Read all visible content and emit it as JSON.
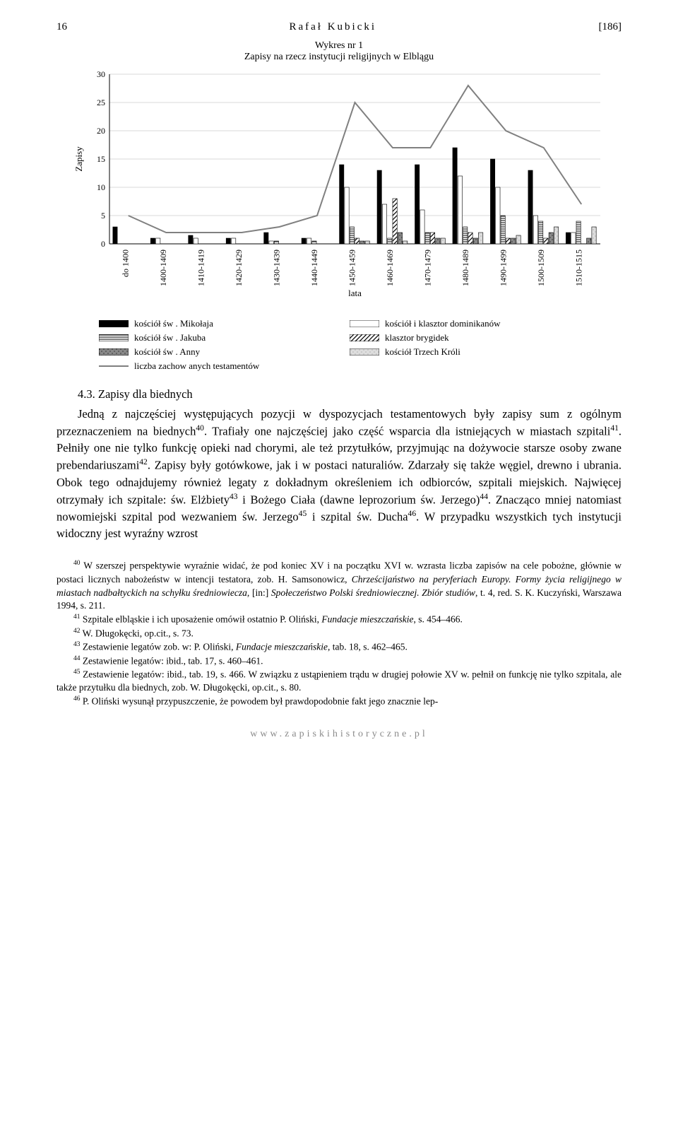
{
  "header": {
    "page_num": "16",
    "author": "Rafał Kubicki",
    "bracket_num": "[186]"
  },
  "chart": {
    "title_line1": "Wykres nr 1",
    "title_line2": "Zapisy na rzecz instytucji religijnych w Elblągu",
    "type": "bar+line",
    "y_label": "Zapisy",
    "x_label": "lata",
    "ylim": [
      0,
      30
    ],
    "ytick_step": 5,
    "background_color": "#ffffff",
    "grid_color": "#d8d8d8",
    "axis_color": "#000000",
    "label_fontsize": 12,
    "title_fontsize": 14,
    "categories": [
      "do 1400",
      "1400-1409",
      "1410-1419",
      "1420-1429",
      "1430-1439",
      "1440-1449",
      "1450-1459",
      "1460-1469",
      "1470-1479",
      "1480-1489",
      "1490-1499",
      "1500-1509",
      "1510-1515"
    ],
    "series": [
      {
        "name": "kościół św. Mikołaja",
        "legend": "kościół św . Mikołaja",
        "fill": "#000000",
        "pattern": "solid",
        "values": [
          3,
          1,
          1.5,
          1,
          2,
          1,
          14,
          13,
          14,
          17,
          15,
          13,
          2
        ]
      },
      {
        "name": "kościół i klasztor dominikanów",
        "legend": "kościół i klasztor dominikanów",
        "fill": "#ffffff",
        "stroke": "#000000",
        "pattern": "outline",
        "values": [
          0,
          1,
          1,
          1,
          0.5,
          1,
          10,
          7,
          6,
          12,
          10,
          5,
          2
        ]
      },
      {
        "name": "kościół św. Jakuba",
        "legend": "kościół św . Jakuba",
        "fill": "#ffffff",
        "stroke": "#000000",
        "pattern": "horizontal-lines",
        "values": [
          0,
          0,
          0,
          0,
          0.5,
          0.5,
          3,
          1,
          2,
          3,
          5,
          4,
          4
        ]
      },
      {
        "name": "klasztor brygidek",
        "legend": "klasztor brygidek",
        "fill": "#ffffff",
        "stroke": "#000000",
        "pattern": "diagonal",
        "values": [
          0,
          0,
          0,
          0,
          0,
          0,
          1,
          8,
          2,
          2,
          1,
          1,
          0
        ]
      },
      {
        "name": "kościół św. Anny",
        "legend": "kościół św . Anny",
        "fill": "#808080",
        "pattern": "dots-dark",
        "values": [
          0,
          0,
          0,
          0,
          0,
          0,
          0.5,
          2,
          1,
          1,
          1,
          2,
          1
        ]
      },
      {
        "name": "kościół Trzech Króli",
        "legend": "kościół Trzech Króli",
        "fill": "#c0c0c0",
        "pattern": "dots-light",
        "values": [
          0,
          0,
          0,
          0,
          0,
          0,
          0.5,
          0.5,
          1,
          2,
          1.5,
          3,
          3
        ]
      }
    ],
    "line_series": {
      "name": "liczba zachowanych testamentów",
      "legend": "liczba zachow anych testamentów",
      "color": "#808080",
      "width": 2,
      "values": [
        5,
        2,
        2,
        2,
        3,
        5,
        25,
        17,
        17,
        28,
        20,
        17,
        7
      ]
    }
  },
  "section": {
    "heading": "4.3. Zapisy dla biednych",
    "paragraph": "Jedną z najczęściej występujących pozycji w dyspozycjach testamentowych były zapisy sum z ogólnym przeznaczeniem na biednych40. Trafiały one najczęściej jako część wsparcia dla istniejących w miastach szpitali41. Pełniły one nie tylko funkcję opieki nad chorymi, ale też przytułków, przyjmując na dożywocie starsze osoby zwane prebendariuszami42. Zapisy były gotówkowe, jak i w postaci naturaliów. Zdarzały się także węgiel, drewno i ubrania. Obok tego odnajdujemy również legaty z dokładnym określeniem ich odbiorców, szpitali miejskich. Najwięcej otrzymały ich szpitale: św. Elżbiety43 i Bożego Ciała (dawne leprozorium św. Jerzego)44. Znacząco mniej natomiast nowomiejski szpital pod wezwaniem św. Jerzego45 i szpital św. Ducha46. W przypadku wszystkich tych instytucji widoczny jest wyraźny wzrost"
  },
  "footnotes": {
    "fn40": "40 W szerszej perspektywie wyraźnie widać, że pod koniec XV i na początku XVI w. wzrasta liczba zapisów na cele pobożne, głównie w postaci licznych nabożeństw w intencji testatora, zob. H. Samsonowicz, Chrześcijaństwo na peryferiach Europy. Formy życia religijnego w miastach nadbałtyckich na schyłku średniowiecza, [in:] Społeczeństwo Polski średniowiecznej. Zbiór studiów, t. 4, red. S. K. Kuczyński, Warszawa 1994, s. 211.",
    "fn41": "41 Szpitale elbląskie i ich uposażenie omówił ostatnio P. Oliński, Fundacje mieszczańskie, s. 454–466.",
    "fn42": "42 W. Długokęcki, op.cit., s. 73.",
    "fn43": "43 Zestawienie legatów zob. w: P. Oliński, Fundacje mieszczańskie, tab. 18, s. 462–465.",
    "fn44": "44 Zestawienie legatów: ibid., tab. 17, s. 460–461.",
    "fn45": "45 Zestawienie legatów: ibid., tab. 19, s. 466. W związku z ustąpieniem trądu w drugiej połowie XV w. pełnił on funkcję nie tylko szpitala, ale także przytułku dla biednych, zob. W. Długokęcki, op.cit., s. 80.",
    "fn46": "46 P. Oliński wysunął przypuszczenie, że powodem był prawdopodobnie fakt jego znacznie lep-"
  },
  "footer_url": "www.zapiskihistoryczne.pl"
}
